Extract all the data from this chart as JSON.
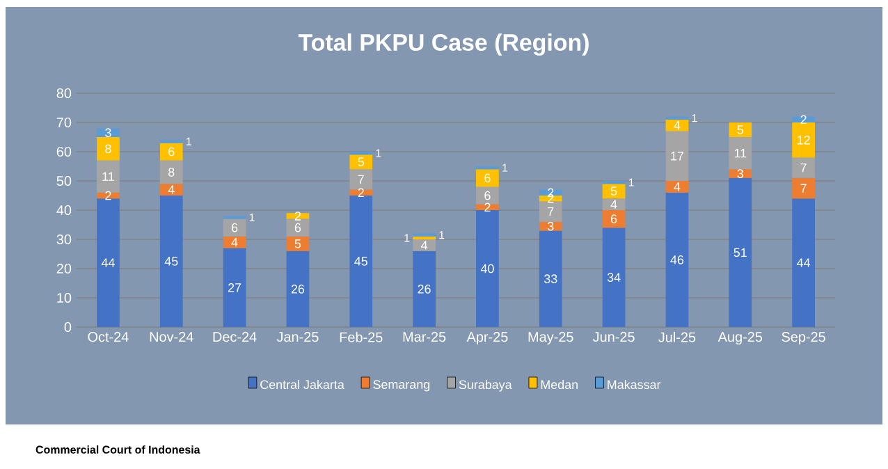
{
  "chart_data": {
    "type": "bar",
    "title": "Total PKPU Case (Region)",
    "categories": [
      "Oct-24",
      "Nov-24",
      "Dec-24",
      "Jan-25",
      "Feb-25",
      "Mar-25",
      "Apr-25",
      "May-25",
      "Jun-25",
      "Jul-25",
      "Aug-25",
      "Sep-25"
    ],
    "series": [
      {
        "name": "Central Jakarta",
        "color": "#4472c4",
        "values": [
          44,
          45,
          27,
          26,
          45,
          26,
          40,
          33,
          34,
          46,
          51,
          44
        ]
      },
      {
        "name": "Semarang",
        "color": "#ed7d31",
        "values": [
          2,
          4,
          4,
          5,
          2,
          null,
          2,
          3,
          6,
          4,
          3,
          7
        ]
      },
      {
        "name": "Surabaya",
        "color": "#a5a5a5",
        "values": [
          11,
          8,
          6,
          6,
          7,
          4,
          6,
          7,
          4,
          17,
          11,
          7
        ]
      },
      {
        "name": "Medan",
        "color": "#ffc000",
        "values": [
          8,
          6,
          null,
          2,
          5,
          1,
          6,
          2,
          5,
          4,
          5,
          12
        ]
      },
      {
        "name": "Makassar",
        "color": "#5b9bd5",
        "values": [
          3,
          1,
          1,
          null,
          1,
          1,
          1,
          2,
          1,
          1,
          null,
          2
        ]
      }
    ],
    "stacked": true,
    "ylim": [
      0,
      80
    ],
    "yticks": [
      0,
      10,
      20,
      30,
      40,
      50,
      60,
      70,
      80
    ],
    "grid": "y",
    "legend": "bottom",
    "data_labels": true,
    "annotations": [
      "Commercial Court of Indonesia"
    ]
  }
}
